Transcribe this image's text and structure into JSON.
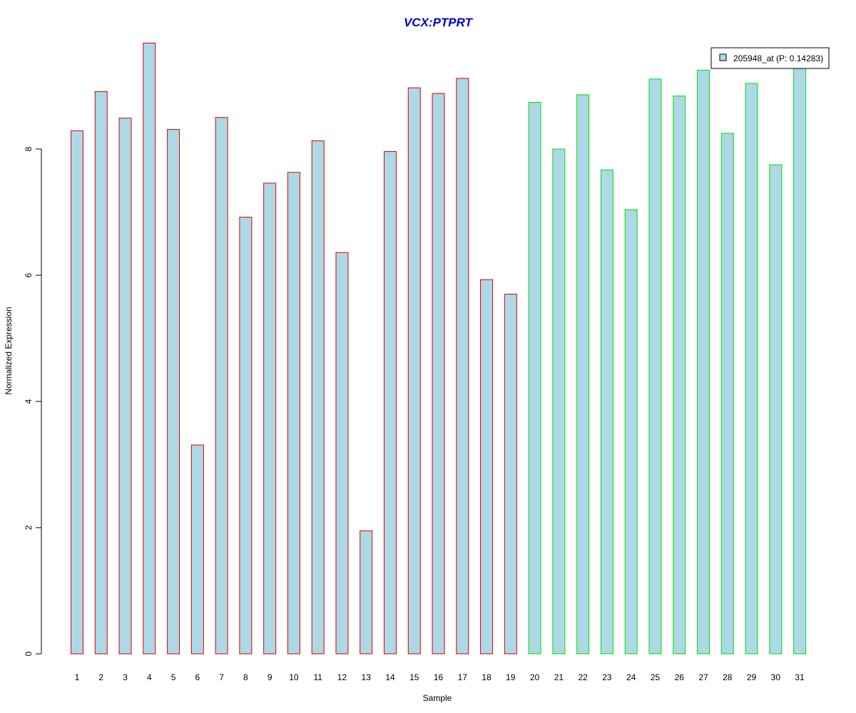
{
  "chart_data": {
    "type": "bar",
    "title": "VCX:PTPRT",
    "xlabel": "Sample",
    "ylabel": "Normalized Expression",
    "categories": [
      "1",
      "2",
      "3",
      "4",
      "5",
      "6",
      "7",
      "8",
      "9",
      "10",
      "11",
      "12",
      "13",
      "14",
      "15",
      "16",
      "17",
      "18",
      "19",
      "20",
      "21",
      "22",
      "23",
      "24",
      "25",
      "26",
      "27",
      "28",
      "29",
      "30",
      "31"
    ],
    "series": [
      {
        "name": "205948_at (P: 0.14283)",
        "values": [
          8.29,
          8.91,
          8.49,
          9.68,
          8.31,
          3.31,
          8.5,
          6.92,
          7.46,
          7.63,
          8.13,
          6.36,
          1.95,
          7.96,
          8.97,
          8.88,
          9.12,
          5.93,
          5.7,
          8.74,
          8.0,
          8.86,
          7.67,
          7.04,
          9.11,
          8.84,
          9.25,
          8.25,
          9.04,
          7.75,
          9.35
        ]
      }
    ],
    "group_border_colors": [
      "#e00000",
      "#e00000",
      "#e00000",
      "#e00000",
      "#e00000",
      "#e00000",
      "#e00000",
      "#e00000",
      "#e00000",
      "#e00000",
      "#e00000",
      "#e00000",
      "#e00000",
      "#e00000",
      "#e00000",
      "#e00000",
      "#e00000",
      "#e00000",
      "#e00000",
      "#00e000",
      "#00e000",
      "#00e000",
      "#00e000",
      "#00e000",
      "#00e000",
      "#00e000",
      "#00e000",
      "#00e000",
      "#00e000",
      "#00e000",
      "#00e000"
    ],
    "bar_fill": "#add8e6",
    "title_color": "#0000cc",
    "yticks": [
      0,
      2,
      4,
      6,
      8
    ],
    "ylim": [
      0,
      9.9
    ],
    "legend_position": "top-right",
    "grid": false
  }
}
